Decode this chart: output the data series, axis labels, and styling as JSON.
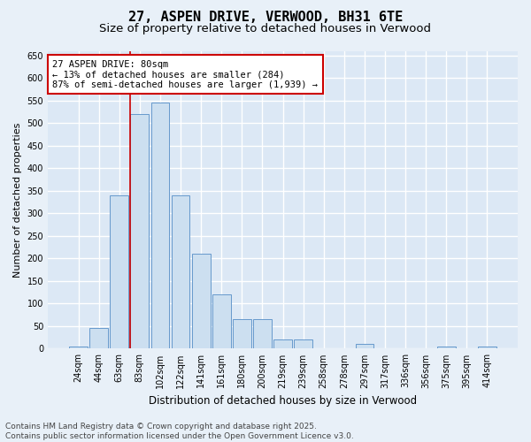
{
  "title": "27, ASPEN DRIVE, VERWOOD, BH31 6TE",
  "subtitle": "Size of property relative to detached houses in Verwood",
  "xlabel": "Distribution of detached houses by size in Verwood",
  "ylabel": "Number of detached properties",
  "categories": [
    "24sqm",
    "44sqm",
    "63sqm",
    "83sqm",
    "102sqm",
    "122sqm",
    "141sqm",
    "161sqm",
    "180sqm",
    "200sqm",
    "219sqm",
    "239sqm",
    "258sqm",
    "278sqm",
    "297sqm",
    "317sqm",
    "336sqm",
    "356sqm",
    "375sqm",
    "395sqm",
    "414sqm"
  ],
  "values": [
    5,
    45,
    340,
    520,
    545,
    340,
    210,
    120,
    65,
    65,
    20,
    20,
    0,
    0,
    10,
    0,
    0,
    0,
    5,
    0,
    5
  ],
  "bar_color": "#ccdff0",
  "bar_edge_color": "#6699cc",
  "vline_x_index": 3,
  "vline_color": "#cc0000",
  "annotation_text": "27 ASPEN DRIVE: 80sqm\n← 13% of detached houses are smaller (284)\n87% of semi-detached houses are larger (1,939) →",
  "annotation_box_color": "white",
  "annotation_box_edge": "#cc0000",
  "ylim": [
    0,
    660
  ],
  "yticks": [
    0,
    50,
    100,
    150,
    200,
    250,
    300,
    350,
    400,
    450,
    500,
    550,
    600,
    650
  ],
  "plot_bg_color": "#dce8f5",
  "fig_bg_color": "#e8f0f8",
  "grid_color": "white",
  "footer_text": "Contains HM Land Registry data © Crown copyright and database right 2025.\nContains public sector information licensed under the Open Government Licence v3.0.",
  "title_fontsize": 11,
  "subtitle_fontsize": 9.5,
  "tick_fontsize": 7,
  "ylabel_fontsize": 8,
  "xlabel_fontsize": 8.5,
  "annotation_fontsize": 7.5,
  "footer_fontsize": 6.5
}
